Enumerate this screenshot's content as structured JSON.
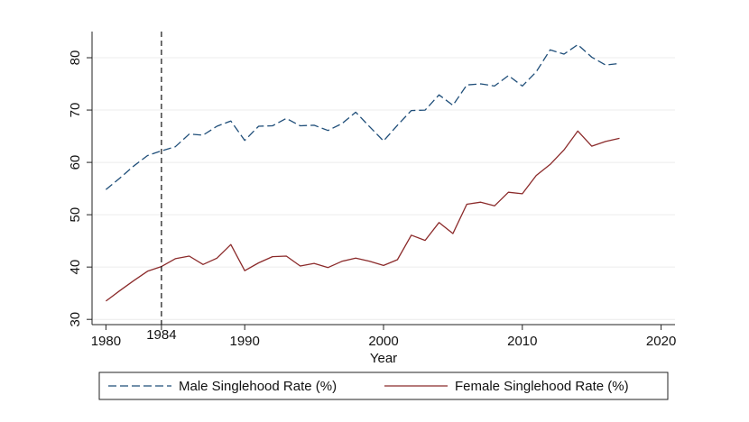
{
  "chart_data": {
    "type": "line",
    "title": "",
    "xlabel": "Year",
    "ylabel": "",
    "xlim": [
      1979,
      2021
    ],
    "ylim": [
      29,
      85
    ],
    "xticks": [
      1980,
      1990,
      2000,
      2010,
      2020
    ],
    "yticks": [
      30,
      40,
      50,
      60,
      70,
      80
    ],
    "grid": true,
    "legend_position": "bottom",
    "reference_line": {
      "x": 1984,
      "label": "1984",
      "style": "dashed"
    },
    "series": [
      {
        "name": "Male Singlehood Rate (%)",
        "color": "#1f4e79",
        "dash": "dashed",
        "x": [
          1980,
          1981,
          1982,
          1983,
          1984,
          1985,
          1986,
          1987,
          1988,
          1989,
          1990,
          1991,
          1992,
          1993,
          1994,
          1995,
          1996,
          1997,
          1998,
          1999,
          2000,
          2001,
          2002,
          2003,
          2004,
          2005,
          2006,
          2007,
          2008,
          2009,
          2010,
          2011,
          2012,
          2013,
          2014,
          2015,
          2016,
          2017
        ],
        "y": [
          54.8,
          57.0,
          59.3,
          61.3,
          62.2,
          63.0,
          65.4,
          65.2,
          66.9,
          67.9,
          64.2,
          66.9,
          67.0,
          68.4,
          67.0,
          67.1,
          66.1,
          67.4,
          69.6,
          66.8,
          64.1,
          67.1,
          69.9,
          70.0,
          72.9,
          70.9,
          74.8,
          75.0,
          74.6,
          76.6,
          74.6,
          77.3,
          81.5,
          80.7,
          82.5,
          80.1,
          78.6,
          78.9
        ]
      },
      {
        "name": "Female Singlehood Rate (%)",
        "color": "#8b2a2a",
        "dash": "solid",
        "x": [
          1980,
          1981,
          1982,
          1983,
          1984,
          1985,
          1986,
          1987,
          1988,
          1989,
          1990,
          1991,
          1992,
          1993,
          1994,
          1995,
          1996,
          1997,
          1998,
          1999,
          2000,
          2001,
          2002,
          2003,
          2004,
          2005,
          2006,
          2007,
          2008,
          2009,
          2010,
          2011,
          2012,
          2013,
          2014,
          2015,
          2016,
          2017
        ],
        "y": [
          33.5,
          35.5,
          37.4,
          39.2,
          40.1,
          41.6,
          42.1,
          40.5,
          41.7,
          44.3,
          39.3,
          40.8,
          42.0,
          42.1,
          40.2,
          40.7,
          39.9,
          41.1,
          41.7,
          41.1,
          40.3,
          41.4,
          46.1,
          45.1,
          48.5,
          46.4,
          52.0,
          52.4,
          51.7,
          54.3,
          54.0,
          57.5,
          59.6,
          62.4,
          66.0,
          63.1,
          64.0,
          64.6
        ]
      }
    ]
  }
}
